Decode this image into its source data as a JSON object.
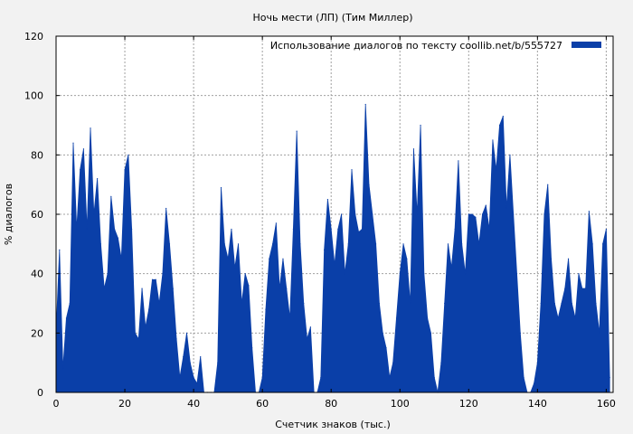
{
  "chart_data": {
    "type": "area",
    "title": "Ночь мести (ЛП) (Тим Миллер)",
    "xlabel": "Счетчик знаков (тыс.)",
    "ylabel": "% диалогов",
    "xlim": [
      0,
      162
    ],
    "ylim": [
      0,
      120
    ],
    "xticks": [
      0,
      20,
      40,
      60,
      80,
      100,
      120,
      140,
      160
    ],
    "yticks": [
      0,
      20,
      40,
      60,
      80,
      100,
      120
    ],
    "grid": true,
    "legend_position": "top-right",
    "series": [
      {
        "name": "Использование диалогов по тексту  coollib.net/b/555727",
        "color": "#0a3fa8",
        "x": [
          0,
          1,
          2,
          3,
          4,
          5,
          6,
          7,
          8,
          9,
          10,
          11,
          12,
          13,
          14,
          15,
          16,
          17,
          18,
          19,
          20,
          21,
          22,
          23,
          24,
          25,
          26,
          27,
          28,
          29,
          30,
          31,
          32,
          33,
          34,
          35,
          36,
          37,
          38,
          39,
          40,
          41,
          42,
          43,
          44,
          45,
          46,
          47,
          48,
          49,
          50,
          51,
          52,
          53,
          54,
          55,
          56,
          57,
          58,
          59,
          60,
          61,
          62,
          63,
          64,
          65,
          66,
          67,
          68,
          69,
          70,
          71,
          72,
          73,
          74,
          75,
          76,
          77,
          78,
          79,
          80,
          81,
          82,
          83,
          84,
          85,
          86,
          87,
          88,
          89,
          90,
          91,
          92,
          93,
          94,
          95,
          96,
          97,
          98,
          99,
          100,
          101,
          102,
          103,
          104,
          105,
          106,
          107,
          108,
          109,
          110,
          111,
          112,
          113,
          114,
          115,
          116,
          117,
          118,
          119,
          120,
          121,
          122,
          123,
          124,
          125,
          126,
          127,
          128,
          129,
          130,
          131,
          132,
          133,
          134,
          135,
          136,
          137,
          138,
          139,
          140,
          141,
          142,
          143,
          144,
          145,
          146,
          147,
          148,
          149,
          150,
          151,
          152,
          153,
          154,
          155,
          156,
          157,
          158,
          159,
          160,
          161
        ],
        "y": [
          20,
          48,
          8,
          25,
          30,
          84,
          55,
          75,
          82,
          55,
          89,
          60,
          72,
          50,
          35,
          40,
          66,
          55,
          52,
          45,
          75,
          80,
          55,
          20,
          18,
          35,
          22,
          28,
          38,
          38,
          30,
          40,
          62,
          50,
          35,
          18,
          5,
          12,
          20,
          10,
          5,
          3,
          12,
          0,
          0,
          0,
          0,
          10,
          69,
          50,
          45,
          55,
          42,
          50,
          30,
          40,
          36,
          15,
          0,
          0,
          5,
          28,
          45,
          50,
          57,
          35,
          45,
          35,
          25,
          55,
          88,
          50,
          30,
          18,
          22,
          0,
          0,
          5,
          48,
          65,
          55,
          43,
          55,
          60,
          40,
          50,
          75,
          60,
          54,
          55,
          97,
          70,
          60,
          50,
          30,
          20,
          15,
          5,
          10,
          25,
          40,
          50,
          45,
          30,
          82,
          60,
          90,
          40,
          25,
          20,
          5,
          0,
          10,
          30,
          50,
          42,
          55,
          78,
          50,
          40,
          60,
          60,
          59,
          50,
          60,
          63,
          55,
          85,
          75,
          90,
          93,
          62,
          80,
          60,
          40,
          20,
          5,
          0,
          0,
          3,
          10,
          30,
          60,
          70,
          45,
          30,
          25,
          30,
          35,
          45,
          30,
          25,
          40,
          35,
          35,
          61,
          50,
          30,
          20,
          50,
          55,
          5
        ]
      }
    ]
  }
}
